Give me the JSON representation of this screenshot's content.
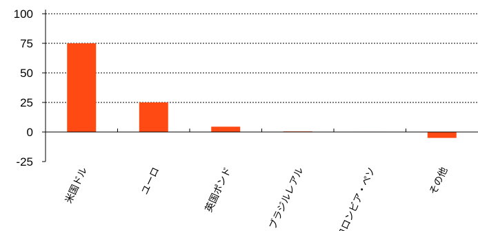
{
  "chart_data": {
    "type": "bar",
    "categories": [
      "米国ドル",
      "ユーロ",
      "英国ポンド",
      "ブラジルレアル",
      "コロンビア・ペソ",
      "その他"
    ],
    "values": [
      75,
      25,
      4.5,
      0.5,
      0.3,
      -5
    ],
    "ylim": [
      -25,
      100
    ],
    "yticks": [
      "100",
      "75",
      "50",
      "25",
      "0",
      "-25"
    ],
    "grid": true,
    "legend": "none",
    "bar_color": "#ff4a14"
  }
}
